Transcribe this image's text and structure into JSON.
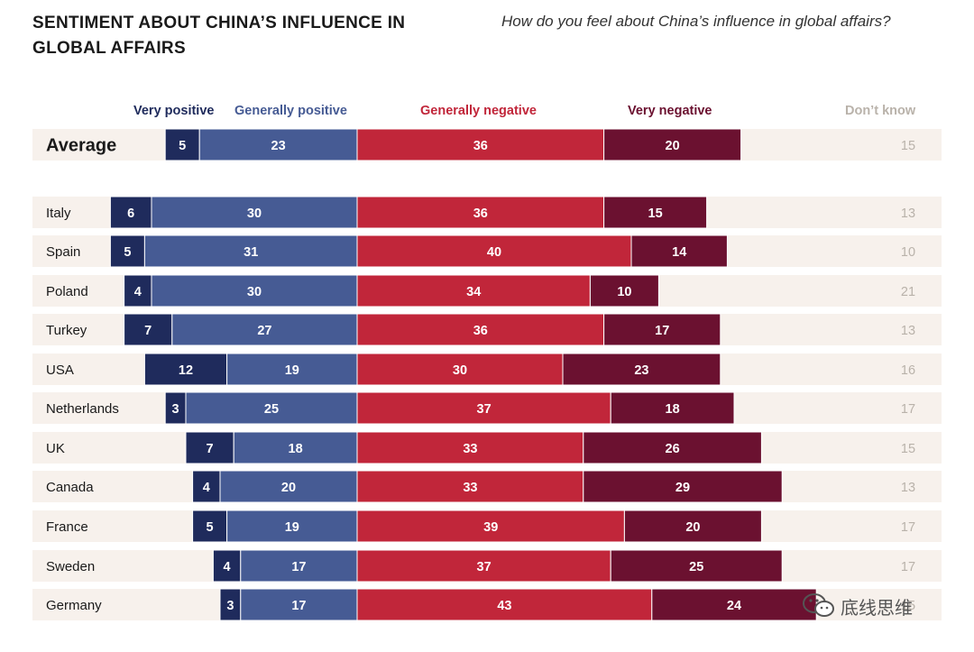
{
  "header": {
    "title": "SENTIMENT ABOUT CHINA’S INFLUENCE IN GLOBAL AFFAIRS",
    "subtitle": "How do you feel about China’s influence in global affairs?"
  },
  "watermark": {
    "text": "底线思维",
    "icon": "wechat-icon"
  },
  "colors": {
    "very_positive": "#1f2b5c",
    "generally_positive": "#465b94",
    "generally_negative": "#c1263a",
    "very_negative": "#6b1130",
    "dont_know": "#b9b2aa",
    "row_bg": "#f7f1ec"
  },
  "chart_data": {
    "type": "bar",
    "orientation": "horizontal",
    "stacked": "diverging",
    "title": "SENTIMENT ABOUT CHINA’S INFLUENCE IN GLOBAL AFFAIRS",
    "series_names": [
      "Very positive",
      "Generally positive",
      "Generally negative",
      "Very negative",
      "Don’t know"
    ],
    "categories": [
      "Average",
      "Italy",
      "Spain",
      "Poland",
      "Turkey",
      "USA",
      "Netherlands",
      "UK",
      "Canada",
      "France",
      "Sweden",
      "Germany"
    ],
    "series": [
      {
        "name": "Very positive",
        "values": [
          5,
          6,
          5,
          4,
          7,
          12,
          3,
          7,
          4,
          5,
          4,
          3
        ]
      },
      {
        "name": "Generally positive",
        "values": [
          23,
          30,
          31,
          30,
          27,
          19,
          25,
          18,
          20,
          19,
          17,
          17
        ]
      },
      {
        "name": "Generally negative",
        "values": [
          36,
          36,
          40,
          34,
          36,
          30,
          37,
          33,
          33,
          39,
          37,
          43
        ]
      },
      {
        "name": "Very negative",
        "values": [
          20,
          15,
          14,
          10,
          17,
          23,
          18,
          26,
          29,
          20,
          25,
          24
        ]
      },
      {
        "name": "Don’t know",
        "values": [
          15,
          13,
          10,
          21,
          13,
          16,
          17,
          15,
          13,
          17,
          17,
          15
        ]
      }
    ]
  }
}
